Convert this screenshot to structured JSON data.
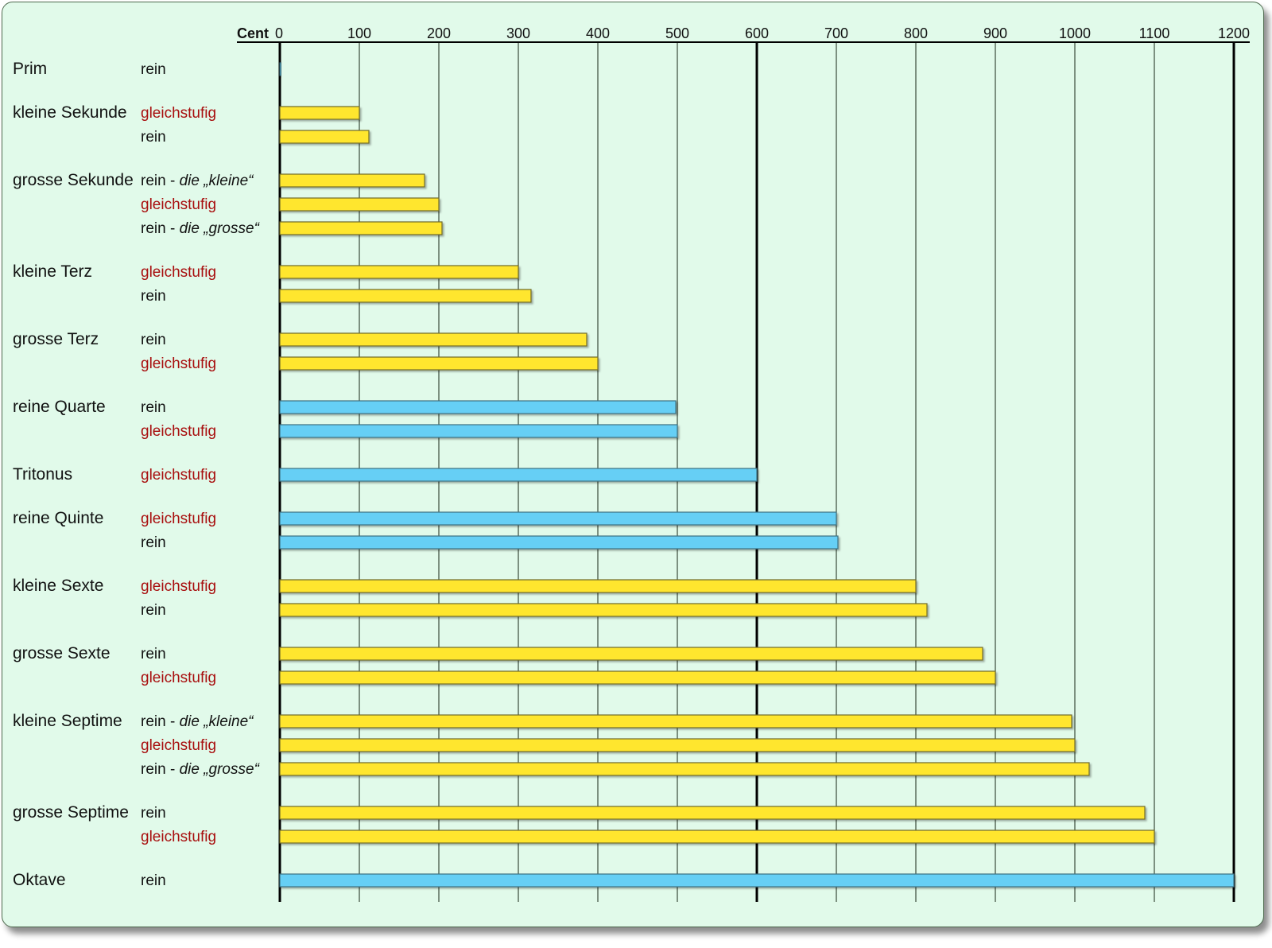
{
  "chart_data": {
    "type": "bar",
    "orientation": "horizontal",
    "title": "",
    "xlabel": "Cent",
    "xlim": [
      0,
      1200
    ],
    "xticks": [
      0,
      100,
      200,
      300,
      400,
      500,
      600,
      700,
      800,
      900,
      1000,
      1100,
      1200
    ],
    "major_gridlines": [
      0,
      600,
      1200
    ],
    "grid": true,
    "colors": {
      "yellow": "#ffe62e",
      "blue": "#66cff5",
      "gleichstufig_text": "#a80e0e",
      "rein_text": "#111111",
      "background": "#e1faea"
    },
    "groups": [
      {
        "name": "Prim",
        "bars": [
          {
            "label": "rein",
            "note": "",
            "value": 0,
            "color": "blue"
          }
        ]
      },
      {
        "name": "kleine Sekunde",
        "bars": [
          {
            "label": "gleichstufig",
            "note": "",
            "value": 100,
            "color": "yellow"
          },
          {
            "label": "rein",
            "note": "",
            "value": 112,
            "color": "yellow"
          }
        ]
      },
      {
        "name": "grosse Sekunde",
        "bars": [
          {
            "label": "rein",
            "note": "die „kleine“",
            "value": 182,
            "color": "yellow"
          },
          {
            "label": "gleichstufig",
            "note": "",
            "value": 200,
            "color": "yellow"
          },
          {
            "label": "rein",
            "note": "die „grosse“",
            "value": 204,
            "color": "yellow"
          }
        ]
      },
      {
        "name": "kleine Terz",
        "bars": [
          {
            "label": "gleichstufig",
            "note": "",
            "value": 300,
            "color": "yellow"
          },
          {
            "label": "rein",
            "note": "",
            "value": 316,
            "color": "yellow"
          }
        ]
      },
      {
        "name": "grosse Terz",
        "bars": [
          {
            "label": "rein",
            "note": "",
            "value": 386,
            "color": "yellow"
          },
          {
            "label": "gleichstufig",
            "note": "",
            "value": 400,
            "color": "yellow"
          }
        ]
      },
      {
        "name": "reine Quarte",
        "bars": [
          {
            "label": "rein",
            "note": "",
            "value": 498,
            "color": "blue"
          },
          {
            "label": "gleichstufig",
            "note": "",
            "value": 500,
            "color": "blue"
          }
        ]
      },
      {
        "name": "Tritonus",
        "bars": [
          {
            "label": "gleichstufig",
            "note": "",
            "value": 600,
            "color": "blue"
          }
        ]
      },
      {
        "name": "reine Quinte",
        "bars": [
          {
            "label": "gleichstufig",
            "note": "",
            "value": 700,
            "color": "blue"
          },
          {
            "label": "rein",
            "note": "",
            "value": 702,
            "color": "blue"
          }
        ]
      },
      {
        "name": "kleine Sexte",
        "bars": [
          {
            "label": "gleichstufig",
            "note": "",
            "value": 800,
            "color": "yellow"
          },
          {
            "label": "rein",
            "note": "",
            "value": 814,
            "color": "yellow"
          }
        ]
      },
      {
        "name": "grosse Sexte",
        "bars": [
          {
            "label": "rein",
            "note": "",
            "value": 884,
            "color": "yellow"
          },
          {
            "label": "gleichstufig",
            "note": "",
            "value": 900,
            "color": "yellow"
          }
        ]
      },
      {
        "name": "kleine Septime",
        "bars": [
          {
            "label": "rein",
            "note": "die „kleine“",
            "value": 996,
            "color": "yellow"
          },
          {
            "label": "gleichstufig",
            "note": "",
            "value": 1000,
            "color": "yellow"
          },
          {
            "label": "rein",
            "note": "die „grosse“",
            "value": 1018,
            "color": "yellow"
          }
        ]
      },
      {
        "name": "grosse Septime",
        "bars": [
          {
            "label": "rein",
            "note": "",
            "value": 1088,
            "color": "yellow"
          },
          {
            "label": "gleichstufig",
            "note": "",
            "value": 1100,
            "color": "yellow"
          }
        ]
      },
      {
        "name": "Oktave",
        "bars": [
          {
            "label": "rein",
            "note": "",
            "value": 1200,
            "color": "blue"
          }
        ]
      }
    ]
  }
}
